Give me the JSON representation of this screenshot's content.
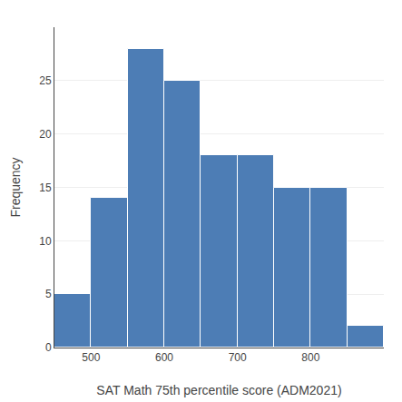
{
  "chart_data": {
    "type": "histogram",
    "xlabel": "SAT Math 75th percentile score (ADM2021)",
    "ylabel": "Frequency",
    "bins": [
      450,
      500,
      550,
      600,
      650,
      700,
      750,
      800,
      850,
      900
    ],
    "values": [
      5,
      14,
      28,
      25,
      18,
      18,
      15,
      15,
      2
    ],
    "color": "#4d7db5",
    "xlim": [
      450,
      900
    ],
    "xticks": [
      500,
      600,
      700,
      800
    ],
    "ylim": [
      0,
      30
    ],
    "yticks": [
      0,
      5,
      10,
      15,
      20,
      25
    ],
    "grid": true
  }
}
